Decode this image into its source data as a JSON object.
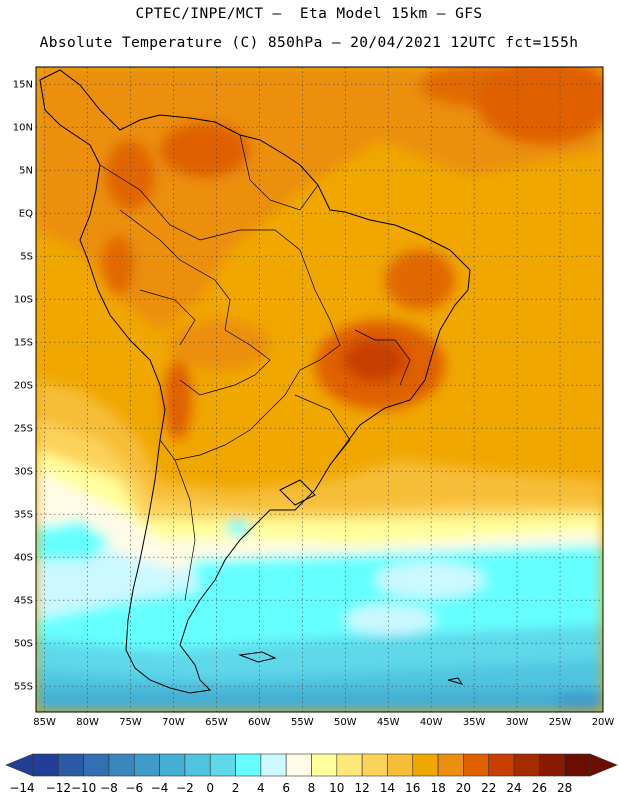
{
  "header": {
    "line1": "CPTEC/INPE/MCT –  Eta Model 15km – GFS",
    "line2": "Absolute Temperature (C) 850hPa – 20/04/2021 12UTC fct=155h"
  },
  "map": {
    "lat_labels": [
      "15N",
      "10N",
      "5N",
      "EQ",
      "5S",
      "10S",
      "15S",
      "20S",
      "25S",
      "30S",
      "35S",
      "40S",
      "45S",
      "50S",
      "55S"
    ],
    "lon_labels": [
      "85W",
      "80W",
      "75W",
      "70W",
      "65W",
      "60W",
      "55W",
      "50W",
      "45W",
      "40W",
      "35W",
      "30W",
      "25W",
      "20W"
    ],
    "lat_range": [
      -58,
      17
    ],
    "lon_range": [
      -86,
      -20
    ]
  },
  "colorbar": {
    "labels": [
      "-14",
      "-12",
      "-10",
      "-8",
      "-6",
      "-4",
      "-2",
      "0",
      "2",
      "4",
      "6",
      "8",
      "10",
      "12",
      "14",
      "16",
      "18",
      "20",
      "22",
      "24",
      "26",
      "28"
    ],
    "colors": [
      "#213f97",
      "#2b5aa6",
      "#3270b2",
      "#3a86be",
      "#3f9bca",
      "#45afd4",
      "#4fc4e0",
      "#5fd8ea",
      "#66ffff",
      "#ccf8ff",
      "#fffbe6",
      "#ffff9c",
      "#fee87a",
      "#fcd35a",
      "#f6bd38",
      "#f0a700",
      "#eb8f10",
      "#e06000",
      "#c84000",
      "#a52b00",
      "#8a1a00",
      "#6b0e00"
    ],
    "left_arrow_color": "#213f97",
    "right_arrow_color": "#6b0e00"
  }
}
